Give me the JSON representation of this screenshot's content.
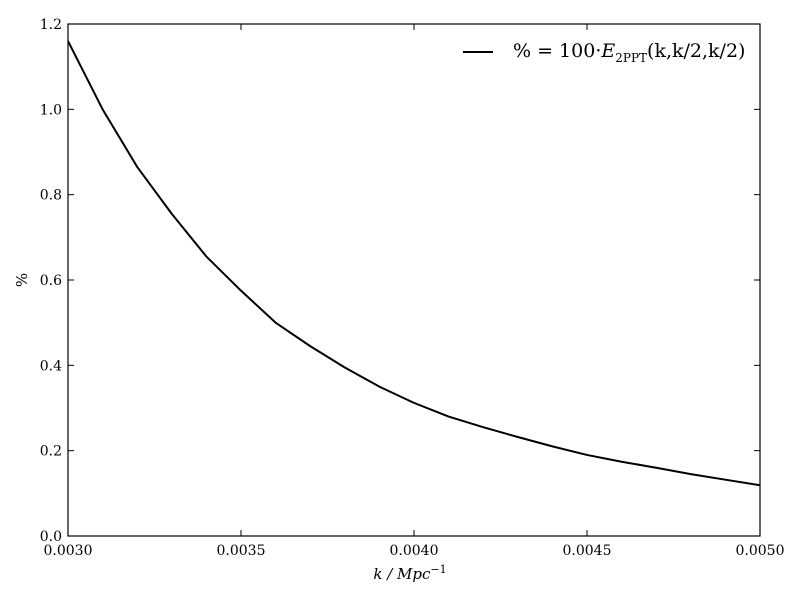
{
  "chart_data": {
    "type": "line",
    "xlabel": "k / Mpc",
    "xlabel_exponent": "−1",
    "ylabel": "%",
    "xlim": [
      0.003,
      0.005
    ],
    "ylim": [
      0.0,
      1.2
    ],
    "x_tick_labels": [
      "0.0030",
      "0.0035",
      "0.0040",
      "0.0045",
      "0.0050"
    ],
    "y_tick_labels": [
      "0.0",
      "0.2",
      "0.4",
      "0.6",
      "0.8",
      "1.0",
      "1.2"
    ],
    "x_ticks": [
      0.003,
      0.0035,
      0.004,
      0.0045,
      0.005
    ],
    "y_ticks": [
      0.0,
      0.2,
      0.4,
      0.6,
      0.8,
      1.0,
      1.2
    ],
    "grid": false,
    "legend_position": "top-right",
    "series": [
      {
        "name": "% = 100·E2PPT(k,k/2,k/2)",
        "legend": {
          "prefix": "% = 100·",
          "symbol": "E",
          "subscript": "2PPT",
          "args": "(k,k/2,k/2)"
        },
        "color": "#000000",
        "x": [
          0.003,
          0.0031,
          0.0032,
          0.0033,
          0.0034,
          0.0035,
          0.0036,
          0.0037,
          0.0038,
          0.0039,
          0.004,
          0.0041,
          0.0042,
          0.0043,
          0.0044,
          0.0045,
          0.0046,
          0.0047,
          0.0048,
          0.0049,
          0.005
        ],
        "y": [
          1.16,
          1.0,
          0.865,
          0.755,
          0.655,
          0.575,
          0.5,
          0.445,
          0.395,
          0.35,
          0.312,
          0.28,
          0.255,
          0.232,
          0.21,
          0.19,
          0.174,
          0.16,
          0.145,
          0.132,
          0.119
        ]
      }
    ]
  }
}
